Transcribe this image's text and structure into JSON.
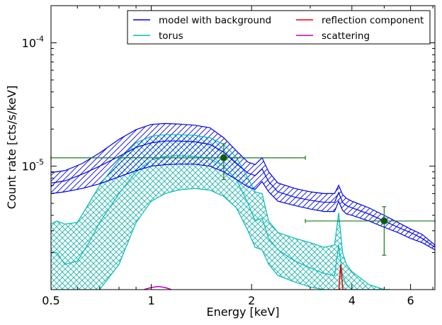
{
  "chart_data": {
    "type": "line",
    "xlabel": "Energy [keV]",
    "ylabel": "Count rate [cts/s/keV]",
    "xscale": "log",
    "yscale": "log",
    "xlim": [
      0.5,
      7.1
    ],
    "ylim": [
      1e-06,
      0.0002
    ],
    "x_ticks": [
      {
        "value": 0.5,
        "label": "0.5"
      },
      {
        "value": 1,
        "label": "1"
      },
      {
        "value": 2,
        "label": "2"
      },
      {
        "value": 4,
        "label": "4"
      },
      {
        "value": 6,
        "label": "6"
      }
    ],
    "y_ticks": [
      {
        "value": 1e-05,
        "label_base": "10",
        "label_exp": "-5"
      },
      {
        "value": 0.0001,
        "label_base": "10",
        "label_exp": "-4"
      }
    ],
    "legend": {
      "placement": "top-right",
      "columns": 2,
      "entries": [
        {
          "label": "model with background",
          "color": "#0000ee"
        },
        {
          "label": "reflection component",
          "color": "#ee0000"
        },
        {
          "label": "torus",
          "color": "#00bbbb"
        },
        {
          "label": "scattering",
          "color": "#bb00bb"
        }
      ]
    },
    "series": [
      {
        "name": "model with background",
        "color": "#0000ee",
        "hatch": "diagonal",
        "x": [
          0.5,
          0.55,
          0.62,
          0.7,
          0.8,
          0.9,
          1.0,
          1.1,
          1.2,
          1.35,
          1.5,
          1.65,
          1.8,
          1.95,
          2.05,
          2.15,
          2.25,
          2.4,
          2.7,
          3.0,
          3.3,
          3.55,
          3.65,
          3.75,
          3.85,
          4.0,
          4.5,
          5.0,
          5.5,
          6.0,
          6.5,
          7.1
        ],
        "lower": [
          6e-06,
          6.2e-06,
          6.6e-06,
          7.2e-06,
          8.2e-06,
          9.2e-06,
          1e-05,
          1.03e-05,
          1.04e-05,
          1.04e-05,
          1e-05,
          9e-06,
          7.8e-06,
          6.8e-06,
          6.5e-06,
          7.5e-06,
          6.2e-06,
          5.2e-06,
          4.8e-06,
          4.5e-06,
          4.3e-06,
          4.3e-06,
          5.2e-06,
          4.4e-06,
          4.1e-06,
          4e-06,
          3.6e-06,
          3.2e-06,
          2.9e-06,
          2.6e-06,
          2.4e-06,
          2.1e-06
        ],
        "center": [
          7.3e-06,
          7.6e-06,
          8.6e-06,
          1e-05,
          1.2e-05,
          1.42e-05,
          1.55e-05,
          1.6e-05,
          1.6e-05,
          1.58e-05,
          1.5e-05,
          1.3e-05,
          1.05e-05,
          8.8e-06,
          8.4e-06,
          9.5e-06,
          7.5e-06,
          6.2e-06,
          5.6e-06,
          5.3e-06,
          5.1e-06,
          5.1e-06,
          6.1e-06,
          5.1e-06,
          4.8e-06,
          4.6e-06,
          4.1e-06,
          3.6e-06,
          3.2e-06,
          2.9e-06,
          2.6e-06,
          2.2e-06
        ],
        "upper": [
          8.9e-06,
          9.2e-06,
          1.05e-05,
          1.28e-05,
          1.65e-05,
          1.98e-05,
          2.18e-05,
          2.22e-05,
          2.2e-05,
          2.15e-05,
          2.05e-05,
          1.7e-05,
          1.33e-05,
          1.08e-05,
          1.03e-05,
          1.17e-05,
          9e-06,
          7.3e-06,
          6.6e-06,
          6.2e-06,
          6e-06,
          6e-06,
          7e-06,
          5.9e-06,
          5.5e-06,
          5.2e-06,
          4.6e-06,
          4e-06,
          3.5e-06,
          3.1e-06,
          2.8e-06,
          2.3e-06
        ]
      },
      {
        "name": "torus",
        "color": "#00bbbb",
        "hatch": "cross",
        "x": [
          0.5,
          0.52,
          0.55,
          0.6,
          0.65,
          0.7,
          0.8,
          0.9,
          1.0,
          1.1,
          1.2,
          1.35,
          1.5,
          1.65,
          1.8,
          1.95,
          2.05,
          2.15,
          2.25,
          2.4,
          2.7,
          3.0,
          3.3,
          3.55,
          3.65,
          3.75,
          3.85,
          4.0,
          4.5,
          5.0,
          5.2
        ],
        "lower": [
          1e-06,
          1e-06,
          1e-06,
          1e-06,
          1e-06,
          1e-06,
          1.6e-06,
          3.5e-06,
          5.2e-06,
          6e-06,
          6.4e-06,
          6.6e-06,
          6.4e-06,
          5.7e-06,
          4.6e-06,
          3e-06,
          2.2e-06,
          2.1e-06,
          1.6e-06,
          1.3e-06,
          1.15e-06,
          1.05e-06,
          1e-06,
          1e-06,
          1e-06,
          1e-06,
          1e-06,
          1e-06,
          1e-06,
          1e-06,
          1e-06
        ],
        "center": [
          2e-06,
          2e-06,
          1.6e-06,
          1.7e-06,
          2.4e-06,
          3.5e-06,
          6e-06,
          9e-06,
          1.12e-05,
          1.2e-05,
          1.22e-05,
          1.2e-05,
          1.15e-05,
          1e-05,
          7.8e-06,
          5e-06,
          3.6e-06,
          3.8e-06,
          2.6e-06,
          2.1e-06,
          1.7e-06,
          1.5e-06,
          1.35e-06,
          1.3e-06,
          2.3e-06,
          1.3e-06,
          1.1e-06,
          1e-06,
          1e-06,
          1e-06,
          1e-06
        ],
        "upper": [
          3.4e-06,
          3.6e-06,
          3.4e-06,
          3.5e-06,
          5e-06,
          7e-06,
          1.12e-05,
          1.55e-05,
          1.75e-05,
          1.8e-05,
          1.8e-05,
          1.78e-05,
          1.7e-05,
          1.5e-05,
          1.18e-05,
          8e-06,
          6.2e-06,
          6e-06,
          3.6e-06,
          2.9e-06,
          2.6e-06,
          2.4e-06,
          2.2e-06,
          2.3e-06,
          4.2e-06,
          2e-06,
          1.6e-06,
          1.4e-06,
          1.1e-06,
          1e-06,
          1e-06
        ]
      },
      {
        "name": "reflection component",
        "color": "#ee0000",
        "x": [
          3.6,
          3.66,
          3.7,
          3.76,
          3.82
        ],
        "y": [
          1e-06,
          1e-06,
          1.6e-06,
          1e-06,
          1e-06
        ]
      },
      {
        "name": "scattering",
        "color": "#bb00bb",
        "x": [
          0.95,
          1.0,
          1.05,
          1.1,
          1.15
        ],
        "y": [
          1e-06,
          1.04e-06,
          1.06e-06,
          1.04e-06,
          1e-06
        ]
      }
    ],
    "data_points": [
      {
        "x": 1.65,
        "y": 1.17e-05,
        "xerr": [
          0.5,
          2.9
        ],
        "yerr": [
          7.8e-06,
          1.52e-05
        ],
        "color": "#1a7a1a"
      },
      {
        "x": 5.0,
        "y": 3.6e-06,
        "xerr": [
          2.9,
          7.1
        ],
        "yerr": [
          1.9e-06,
          4.7e-06
        ],
        "color": "#1a7a1a"
      }
    ]
  }
}
